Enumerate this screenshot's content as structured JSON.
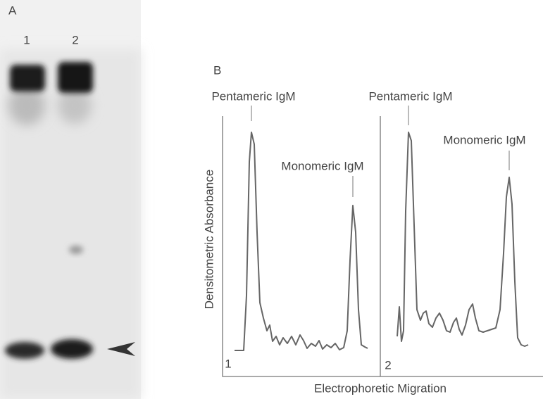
{
  "panel_a": {
    "label": "A",
    "lanes": [
      "1",
      "2"
    ]
  },
  "panel_b": {
    "label": "B",
    "y_axis_label": "Densitometric Absorbance",
    "x_axis_label": "Electrophoretic Migration",
    "traces": [
      {
        "number": "1",
        "peaks": [
          "Pentameric IgM",
          "Monomeric IgM"
        ]
      },
      {
        "number": "2",
        "peaks": [
          "Pentameric IgM",
          "Monomeric IgM"
        ]
      }
    ]
  }
}
